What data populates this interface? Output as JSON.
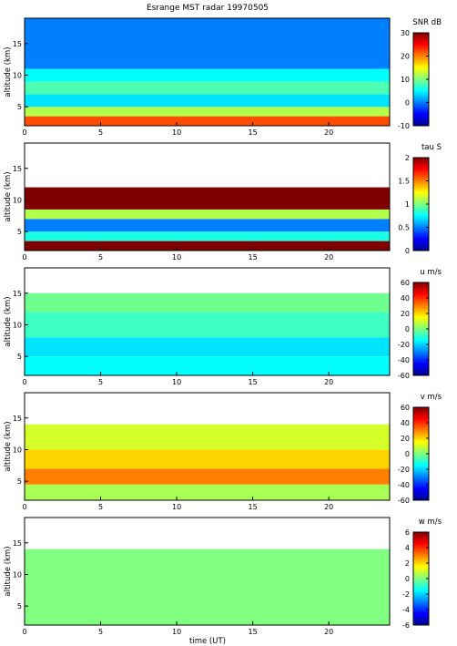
{
  "figure": {
    "title": "Esrange MST radar 19970505",
    "xlabel": "time (UT)"
  },
  "chart_data": [
    {
      "type": "heatmap",
      "panel": "snr",
      "ylabel": "altitude (km)",
      "xlim": [
        0,
        24
      ],
      "ylim": [
        2,
        19
      ],
      "xticks": [
        "0",
        "5",
        "10",
        "15",
        "20"
      ],
      "yticks": [
        "5",
        "10",
        "15"
      ],
      "colorbar": {
        "label": "SNR dB",
        "range": [
          -10,
          30
        ],
        "ticks": [
          "30",
          "20",
          "10",
          "0",
          "-10"
        ]
      },
      "layers": [
        {
          "alt": [
            2,
            3.5
          ],
          "value": 22
        },
        {
          "alt": [
            3.5,
            5
          ],
          "value": 12
        },
        {
          "alt": [
            5,
            7
          ],
          "value": 4
        },
        {
          "alt": [
            7,
            9
          ],
          "value": 8
        },
        {
          "alt": [
            9,
            11
          ],
          "value": 5
        },
        {
          "alt": [
            11,
            19
          ],
          "value": 0
        }
      ]
    },
    {
      "type": "heatmap",
      "panel": "tau",
      "ylabel": "altitude (km)",
      "xlim": [
        0,
        24
      ],
      "ylim": [
        2,
        19
      ],
      "xticks": [
        "0",
        "5",
        "10",
        "15",
        "20"
      ],
      "yticks": [
        "5",
        "10",
        "15"
      ],
      "colorbar": {
        "label": "tau S",
        "range": [
          0,
          2
        ],
        "ticks": [
          "2",
          "1.5",
          "1",
          "0.5",
          "0"
        ]
      },
      "layers": [
        {
          "alt": [
            2,
            3.5
          ],
          "value": 2.0
        },
        {
          "alt": [
            3.5,
            5
          ],
          "value": 0.8
        },
        {
          "alt": [
            5,
            7
          ],
          "value": 0.5
        },
        {
          "alt": [
            7,
            8.5
          ],
          "value": 1.1
        },
        {
          "alt": [
            8.5,
            12
          ],
          "value": 2.0
        }
      ]
    },
    {
      "type": "heatmap",
      "panel": "u",
      "ylabel": "altitude (km)",
      "xlim": [
        0,
        24
      ],
      "ylim": [
        2,
        19
      ],
      "xticks": [
        "0",
        "5",
        "10",
        "15",
        "20"
      ],
      "yticks": [
        "5",
        "10",
        "15"
      ],
      "colorbar": {
        "label": "u m/s",
        "range": [
          -60,
          60
        ],
        "ticks": [
          "60",
          "40",
          "20",
          "0",
          "-20",
          "-40",
          "-60"
        ]
      },
      "layers": [
        {
          "alt": [
            2,
            5
          ],
          "value": -15
        },
        {
          "alt": [
            5,
            8
          ],
          "value": -18
        },
        {
          "alt": [
            8,
            12
          ],
          "value": -8
        },
        {
          "alt": [
            12,
            15
          ],
          "value": -2
        }
      ]
    },
    {
      "type": "heatmap",
      "panel": "v",
      "ylabel": "altitude (km)",
      "xlim": [
        0,
        24
      ],
      "ylim": [
        2,
        19
      ],
      "xticks": [
        "0",
        "5",
        "10",
        "15",
        "20"
      ],
      "yticks": [
        "5",
        "10",
        "15"
      ],
      "colorbar": {
        "label": "v m/s",
        "range": [
          -60,
          60
        ],
        "ticks": [
          "60",
          "40",
          "20",
          "0",
          "-20",
          "-40",
          "-60"
        ]
      },
      "layers": [
        {
          "alt": [
            2,
            4.5
          ],
          "value": 5
        },
        {
          "alt": [
            4.5,
            7
          ],
          "value": 30
        },
        {
          "alt": [
            7,
            10
          ],
          "value": 20
        },
        {
          "alt": [
            10,
            14
          ],
          "value": 10
        }
      ]
    },
    {
      "type": "heatmap",
      "panel": "w",
      "ylabel": "altitude (km)",
      "xlim": [
        0,
        24
      ],
      "ylim": [
        2,
        19
      ],
      "xticks": [
        "0",
        "5",
        "10",
        "15",
        "20"
      ],
      "yticks": [
        "5",
        "10",
        "15"
      ],
      "colorbar": {
        "label": "w m/s",
        "range": [
          -6,
          6
        ],
        "ticks": [
          "6",
          "4",
          "2",
          "0",
          "-2",
          "-4",
          "-6"
        ]
      },
      "layers": [
        {
          "alt": [
            2,
            14
          ],
          "value": 0
        }
      ]
    }
  ]
}
